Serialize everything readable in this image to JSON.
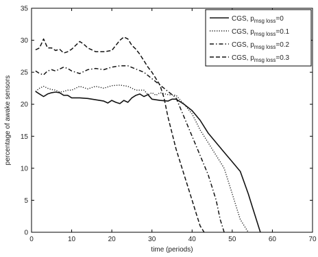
{
  "chart_data": {
    "type": "line",
    "title": "",
    "xlabel": "time (periods)",
    "ylabel": "percentage of awake sensors",
    "xlim": [
      0,
      70
    ],
    "ylim": [
      0,
      35
    ],
    "xticks": [
      0,
      10,
      20,
      30,
      40,
      50,
      60,
      70
    ],
    "yticks": [
      0,
      5,
      10,
      15,
      20,
      25,
      30,
      35
    ],
    "grid": false,
    "legend_position": "top-right",
    "legend_prefix": "CGS, p",
    "legend_subscript": "msg loss",
    "series": [
      {
        "name": "CGS, pmsg loss=0",
        "legend_value": "=0",
        "dash": "solid",
        "x": [
          1,
          2,
          3,
          4,
          5,
          6,
          7,
          8,
          9,
          10,
          12,
          14,
          16,
          18,
          19,
          20,
          21,
          22,
          23,
          24,
          25,
          26,
          27,
          28,
          29,
          30,
          32,
          34,
          35,
          36,
          38,
          40,
          42,
          44,
          46,
          48,
          50,
          52,
          54,
          55,
          56,
          57
        ],
        "y": [
          22,
          21.6,
          21.2,
          21.6,
          21.8,
          21.9,
          21.8,
          21.4,
          21.4,
          21,
          21,
          20.9,
          20.7,
          20.5,
          20.2,
          20.6,
          20.3,
          20.1,
          20.6,
          20.3,
          21,
          21.4,
          21.6,
          21.2,
          21.5,
          20.8,
          20.6,
          20.5,
          20.8,
          20.8,
          20,
          19,
          17.5,
          15.5,
          14,
          12.5,
          11,
          9.5,
          6,
          4,
          2,
          0
        ]
      },
      {
        "name": "CGS, pmsg loss=0.1",
        "legend_value": "=0.1",
        "dash": "dotted",
        "x": [
          1,
          2,
          3,
          4,
          5,
          6,
          7,
          8,
          9,
          10,
          12,
          14,
          16,
          18,
          20,
          22,
          24,
          26,
          28,
          29,
          30,
          31,
          32,
          34,
          36,
          38,
          40,
          42,
          44,
          46,
          48,
          50,
          51,
          52,
          53,
          54
        ],
        "y": [
          22,
          22.5,
          22.8,
          22.5,
          22.3,
          22.2,
          21.9,
          22,
          22.2,
          22.2,
          22.8,
          22.4,
          22.8,
          22.5,
          22.9,
          23,
          22.8,
          22.2,
          22.2,
          21.5,
          21.8,
          21.4,
          21.8,
          21.5,
          21.4,
          20,
          18.5,
          16,
          14,
          12,
          10,
          6,
          4,
          2,
          1,
          0
        ]
      },
      {
        "name": "CGS, pmsg loss=0.2",
        "legend_value": "=0.2",
        "dash": "dashdot",
        "x": [
          1,
          2,
          3,
          4,
          5,
          6,
          7,
          8,
          9,
          10,
          12,
          14,
          16,
          18,
          20,
          22,
          24,
          26,
          28,
          30,
          31,
          32,
          33,
          34,
          35,
          36,
          38,
          40,
          42,
          44,
          45,
          46,
          47,
          48
        ],
        "y": [
          25.2,
          24.8,
          24.6,
          25.2,
          25.4,
          25.2,
          25.5,
          25.8,
          25.6,
          25.2,
          24.8,
          25.4,
          25.6,
          25.4,
          25.8,
          26,
          26,
          25.5,
          25,
          24,
          23.5,
          23,
          22.5,
          22,
          21.5,
          21,
          18,
          15,
          12,
          9,
          7,
          5,
          2,
          0
        ]
      },
      {
        "name": "CGS, pmsg loss=0.3",
        "legend_value": "=0.3",
        "dash": "dashed",
        "x": [
          1,
          2,
          3,
          4,
          5,
          6,
          7,
          8,
          9,
          10,
          11,
          12,
          13,
          14,
          16,
          18,
          20,
          22,
          23,
          24,
          25,
          26,
          27,
          28,
          29,
          30,
          31,
          32,
          33,
          34,
          36,
          38,
          40,
          41,
          42,
          43
        ],
        "y": [
          28.5,
          28.8,
          30.2,
          28.8,
          28.8,
          28.4,
          28.6,
          28,
          28.2,
          28.6,
          29.2,
          29.8,
          29.4,
          28.8,
          28.2,
          28.2,
          28.4,
          30,
          30.5,
          30.2,
          29.2,
          28.6,
          27.8,
          26.8,
          25.8,
          25,
          24,
          23,
          21,
          18,
          13,
          9,
          5,
          3,
          1,
          0
        ]
      }
    ]
  }
}
